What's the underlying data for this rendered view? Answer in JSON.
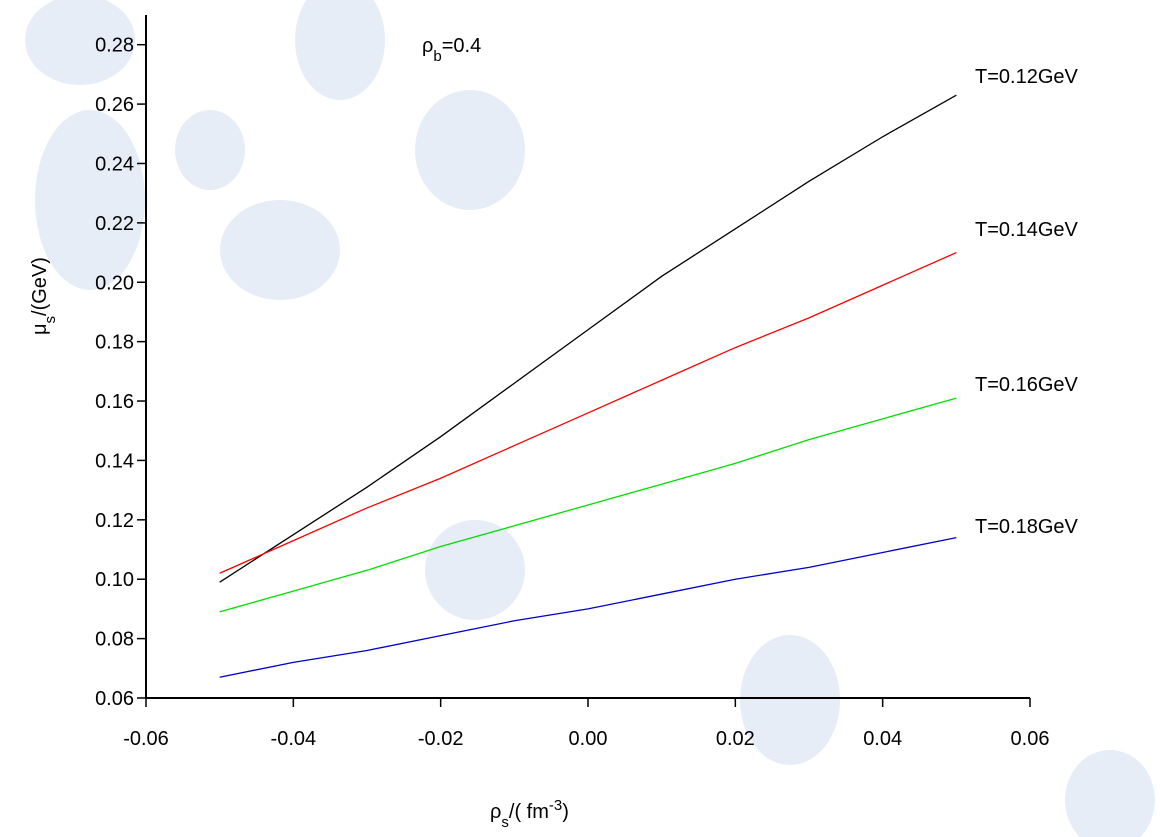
{
  "chart_data": {
    "type": "line",
    "annotation": [
      "ρ",
      "b",
      "=0.4"
    ],
    "x_label": [
      "ρ",
      "s",
      "/(  fm",
      "-3",
      ")"
    ],
    "y_label": [
      "μ",
      "s",
      "/(GeV)"
    ],
    "x": [
      -0.05,
      -0.04,
      -0.03,
      -0.02,
      -0.01,
      0,
      0.01,
      0.02,
      0.03,
      0.04,
      0.05
    ],
    "series": [
      {
        "name": "T=0.12GeV",
        "color": "#000000",
        "values": [
          0.099,
          0.115,
          0.131,
          0.148,
          0.166,
          0.184,
          0.202,
          0.218,
          0.234,
          0.249,
          0.263
        ]
      },
      {
        "name": "T=0.14GeV",
        "color": "#ff0000",
        "values": [
          0.102,
          0.113,
          0.124,
          0.134,
          0.145,
          0.156,
          0.167,
          0.178,
          0.188,
          0.199,
          0.21
        ]
      },
      {
        "name": "T=0.16GeV",
        "color": "#00dd00",
        "values": [
          0.089,
          0.096,
          0.103,
          0.111,
          0.118,
          0.125,
          0.132,
          0.139,
          0.147,
          0.154,
          0.161
        ]
      },
      {
        "name": "T=0.18GeV",
        "color": "#0000cc",
        "values": [
          0.067,
          0.072,
          0.076,
          0.081,
          0.086,
          0.09,
          0.095,
          0.1,
          0.104,
          0.109,
          0.114
        ]
      }
    ],
    "xlim": [
      -0.06,
      0.06
    ],
    "xticks": [
      -0.06,
      -0.04,
      -0.02,
      {
        "value": 0,
        "label": "0.00"
      },
      0.02,
      0.04,
      0.06
    ],
    "ylim": [
      0.06,
      0.29
    ],
    "yticks": [
      0.06,
      0.08,
      {
        "value": 0.1,
        "label": "0.10"
      },
      0.12,
      0.14,
      0.16,
      0.18,
      {
        "value": 0.2,
        "label": "0.20"
      },
      0.22,
      0.24,
      0.26,
      0.28
    ]
  }
}
